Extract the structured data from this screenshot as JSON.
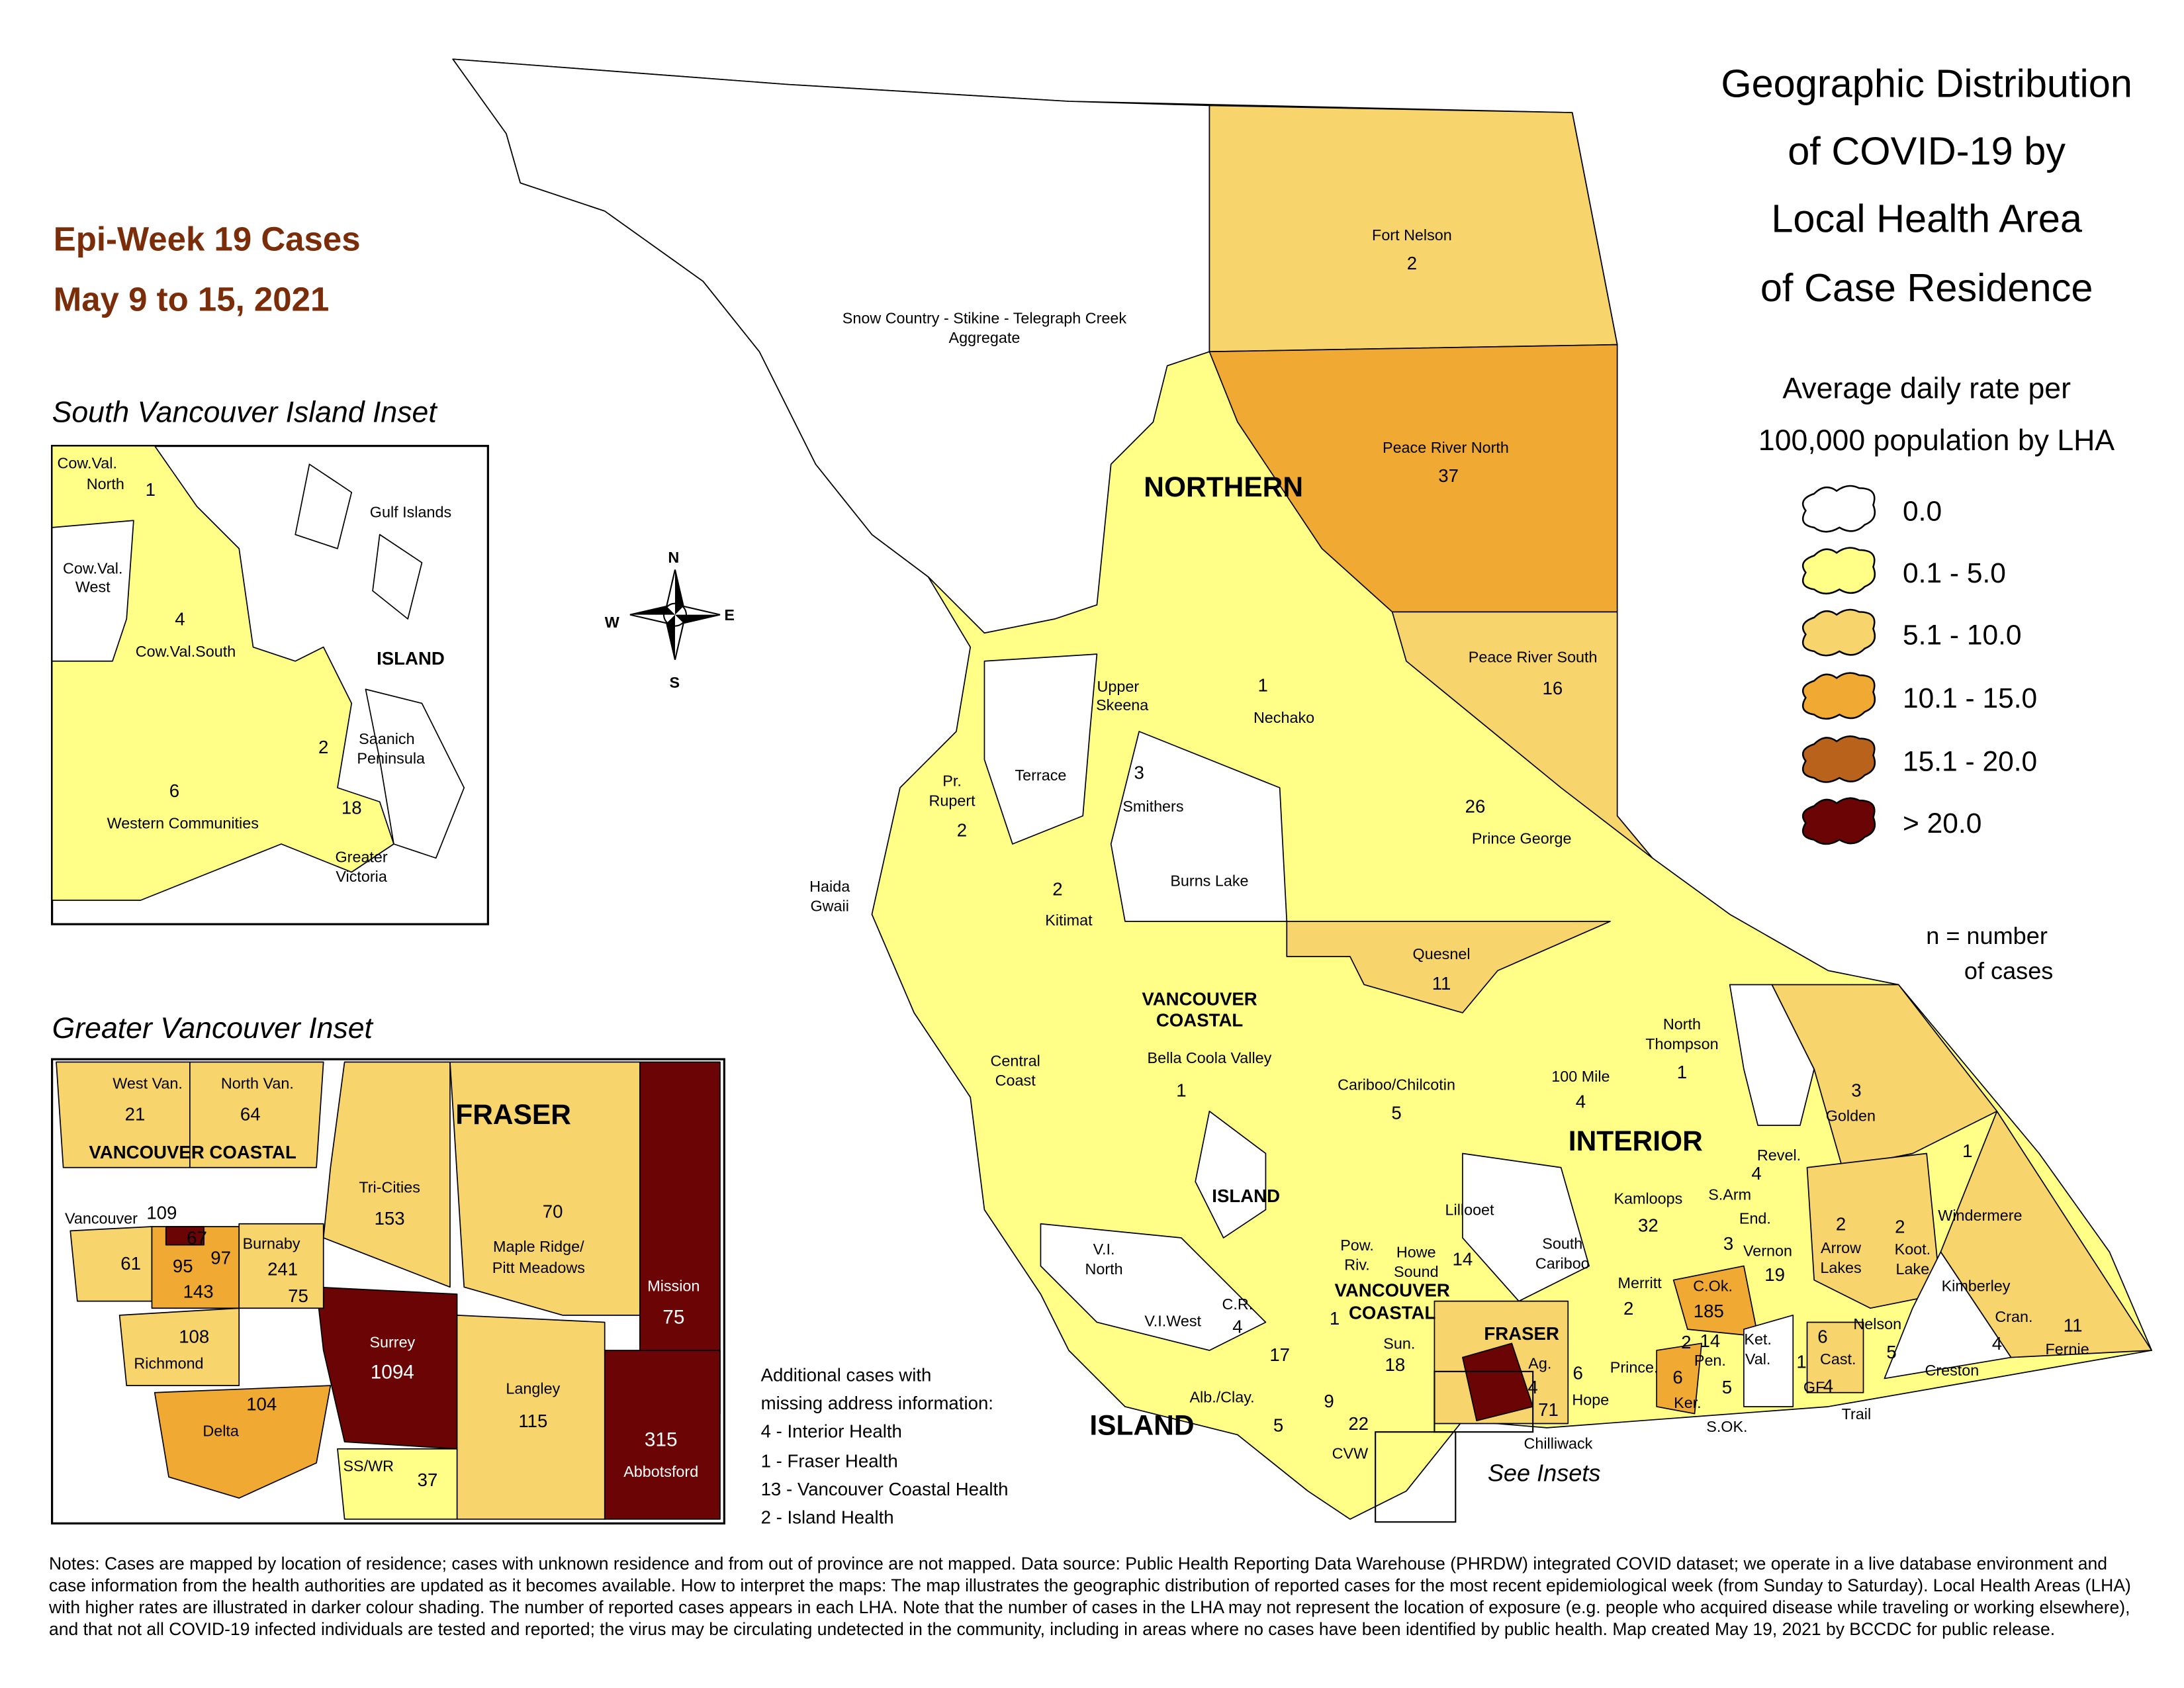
{
  "title": [
    "Geographic Distribution",
    "of COVID-19 by",
    "Local Health Area",
    "of Case Residence"
  ],
  "subtitle": [
    "Average daily rate per",
    "100,000 population by LHA"
  ],
  "week": [
    "Epi-Week 19 Cases",
    "May 9 to 15, 2021"
  ],
  "legend": {
    "items": [
      {
        "label": "0.0",
        "color": "#ffffff"
      },
      {
        "label": "0.1 - 5.0",
        "color": "#ffff88"
      },
      {
        "label": "5.1 - 10.0",
        "color": "#f8d46c"
      },
      {
        "label": "10.1 - 15.0",
        "color": "#f0a933"
      },
      {
        "label": "15.1 - 20.0",
        "color": "#b8621b"
      },
      {
        "label": "> 20.0",
        "color": "#6b0404"
      }
    ],
    "note": [
      "n = number",
      "of cases"
    ]
  },
  "compass": [
    "N",
    "E",
    "S",
    "W"
  ],
  "main_map": {
    "labels": [
      "Fort Nelson",
      2,
      "Snow Country - Stikine - Telegraph Creek",
      "Aggregate",
      "Peace River North",
      37,
      "NORTHERN",
      "Peace River South",
      16,
      "Upper",
      "Skeena",
      1,
      "Nechako",
      "Terrace",
      3,
      "Smithers",
      "Pr.",
      "Rupert",
      2,
      26,
      "Prince George",
      "Haida",
      "Gwaii",
      2,
      "Kitimat",
      "Burns Lake",
      "Quesnel",
      11,
      "VANCOUVER",
      "COASTAL",
      "Central",
      "Coast",
      "Bella Coola Valley",
      1,
      "Cariboo/Chilcotin",
      5,
      "North",
      "Thompson",
      1,
      "100 Mile",
      4,
      3,
      "Golden",
      "INTERIOR",
      "Revel.",
      1,
      "Windermere",
      "ISLAND",
      "Lillooet",
      4,
      "S.Arm",
      "Kamloops",
      32,
      "End.",
      3,
      "Vernon",
      19,
      2,
      "Arrow",
      "Lakes",
      2,
      "Koot.",
      "Lake",
      "V.I.",
      "North",
      "Pow.",
      "Riv.",
      "Howe",
      "Sound",
      14,
      "South",
      "Cariboo",
      "Merritt",
      2,
      "C.Ok.",
      185,
      "VANCOUVER",
      "COASTAL",
      "Kimberley",
      "V.I.West",
      "C.R.",
      4,
      1,
      "Sun.",
      18,
      "FRASER",
      "Nelson",
      5,
      "Cran.",
      4,
      11,
      "Fernie",
      6,
      "Cast.",
      4,
      "Trail",
      "Ket.",
      "Val.",
      1,
      "GF",
      2,
      14,
      "Pen.",
      6,
      "Ker.",
      5,
      "S.OK.",
      "Prince.",
      "Ag.",
      4,
      6,
      "Hope",
      71,
      "Creston",
      17,
      "Alb./Clay.",
      5,
      9,
      22,
      "ISLAND",
      "Chilliwack",
      "CVW",
      "See Insets"
    ]
  },
  "south_island_inset": {
    "title": "South Vancouver Island Inset",
    "labels": [
      "Cow.Val.",
      "North",
      1,
      "Gulf Islands",
      "Cow.Val.",
      "West",
      4,
      "Cow.Val.South",
      "ISLAND",
      2,
      "Saanich",
      "Peninsula",
      6,
      "Western Communities",
      18,
      "Greater",
      "Victoria"
    ]
  },
  "vancouver_inset": {
    "title": "Greater Vancouver Inset",
    "labels": [
      "West Van.",
      21,
      "North Van.",
      64,
      "FRASER",
      "VANCOUVER COASTAL",
      "Tri-Cities",
      153,
      70,
      "Maple Ridge/",
      "Pitt Meadows",
      "Vancouver",
      109,
      67,
      61,
      95,
      97,
      "Burnaby",
      241,
      143,
      75,
      "Mission",
      75,
      108,
      "Richmond",
      "Surrey",
      1094,
      "Langley",
      115,
      104,
      "Delta",
      315,
      "Abbotsford",
      "SS/WR",
      37
    ]
  },
  "missing_cases": [
    "Additional cases with",
    "missing address information:",
    "4 - Interior Health",
    "1 - Fraser Health",
    "13 - Vancouver Coastal Health",
    "2 - Island Health"
  ],
  "notes": "Notes: Cases are mapped by location of residence; cases with unknown residence and from out of province are not mapped. Data source: Public Health Reporting Data Warehouse (PHRDW) integrated COVID dataset; we operate in a live database environment and case information from the health authorities are updated as it becomes available. How to interpret the maps: The map illustrates the geographic distribution of reported cases for the most recent epidemiological week (from Sunday to Saturday). Local Health Areas (LHA) with higher rates are illustrated in darker colour shading. The number of reported cases appears in each LHA. Note that the number of cases in the LHA may not represent the location of exposure (e.g. people who acquired disease while traveling or working elsewhere), and that not all COVID-19 infected individuals are tested and reported; the virus may be circulating undetected in the community, including in areas where no cases have been identified by public health. Map created May 19, 2021 by BCCDC for public release."
}
